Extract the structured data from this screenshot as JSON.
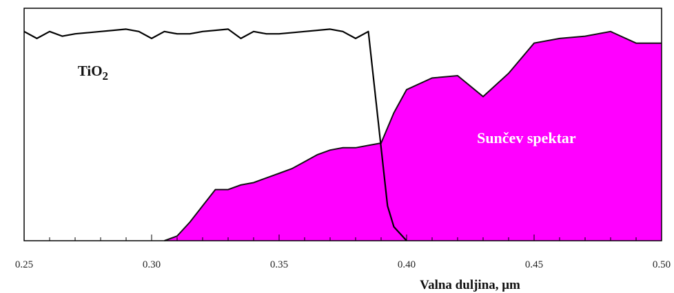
{
  "chart_data": {
    "type": "area",
    "xlabel": "Valna duljina, μm",
    "ylabel": "",
    "xlim": [
      0.25,
      0.5
    ],
    "ylim": [
      0,
      1
    ],
    "x_ticks": [
      "0.25",
      "0.30",
      "0.35",
      "0.40",
      "0.45",
      "0.50"
    ],
    "grid": false,
    "series": [
      {
        "name": "TiO2",
        "kind": "line",
        "color": "#000000",
        "x": [
          0.25,
          0.255,
          0.26,
          0.265,
          0.27,
          0.28,
          0.29,
          0.295,
          0.3,
          0.305,
          0.31,
          0.315,
          0.32,
          0.33,
          0.335,
          0.34,
          0.345,
          0.35,
          0.36,
          0.37,
          0.375,
          0.38,
          0.385,
          0.39,
          0.3925,
          0.395,
          0.4
        ],
        "values": [
          0.9,
          0.87,
          0.9,
          0.88,
          0.89,
          0.9,
          0.91,
          0.9,
          0.87,
          0.9,
          0.89,
          0.89,
          0.9,
          0.91,
          0.87,
          0.9,
          0.89,
          0.89,
          0.9,
          0.91,
          0.9,
          0.87,
          0.9,
          0.4,
          0.15,
          0.06,
          0.0
        ]
      },
      {
        "name": "Sunčev spektar",
        "kind": "area",
        "color": "#ff00ff",
        "x": [
          0.305,
          0.31,
          0.315,
          0.32,
          0.325,
          0.33,
          0.335,
          0.34,
          0.345,
          0.35,
          0.355,
          0.36,
          0.365,
          0.37,
          0.375,
          0.38,
          0.385,
          0.39,
          0.395,
          0.4,
          0.41,
          0.42,
          0.43,
          0.44,
          0.45,
          0.46,
          0.47,
          0.48,
          0.49,
          0.5
        ],
        "values": [
          0.0,
          0.02,
          0.08,
          0.15,
          0.22,
          0.22,
          0.24,
          0.25,
          0.27,
          0.29,
          0.31,
          0.34,
          0.37,
          0.39,
          0.4,
          0.4,
          0.41,
          0.42,
          0.55,
          0.65,
          0.7,
          0.71,
          0.62,
          0.72,
          0.85,
          0.87,
          0.88,
          0.9,
          0.85,
          0.85
        ]
      }
    ],
    "annotations": [
      {
        "text": "TiO",
        "subscript": "2",
        "x": 0.277,
        "y": 0.71
      },
      {
        "text": "Sunčev spektar",
        "x": 0.447,
        "y": 0.42
      }
    ]
  }
}
